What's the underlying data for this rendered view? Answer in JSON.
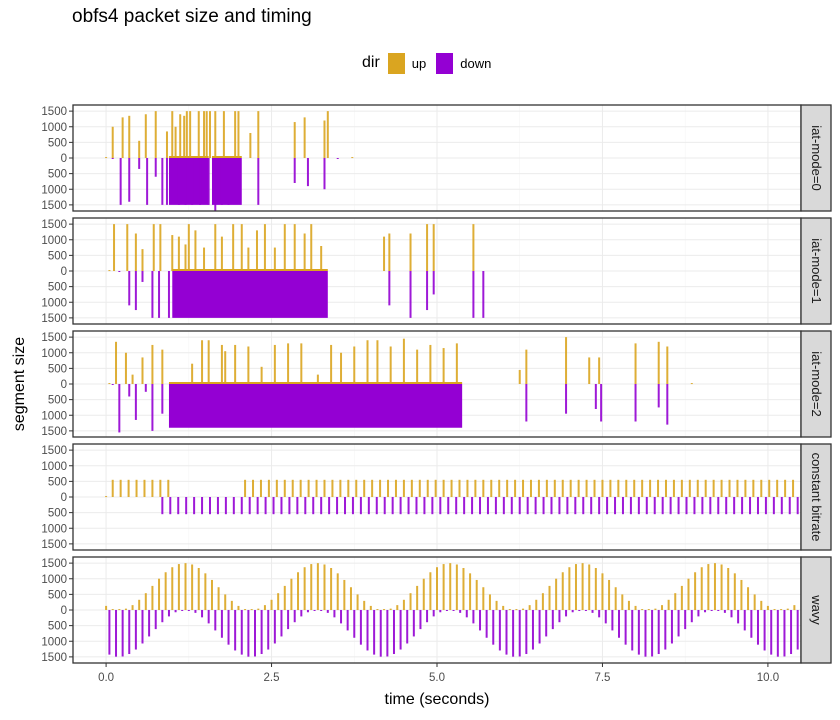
{
  "chart_data": {
    "type": "bar",
    "title": "obfs4 packet size and timing",
    "xlabel": "time (seconds)",
    "ylabel": "segment size",
    "xlim": [
      -0.5,
      10.5
    ],
    "ylim": [
      -1600,
      1600
    ],
    "x_ticks": [
      0.0,
      2.5,
      5.0,
      7.5,
      10.0
    ],
    "x_tick_labels": [
      "0.0",
      "2.5",
      "5.0",
      "7.5",
      "10.0"
    ],
    "y_ticks": [
      1500,
      1000,
      500,
      0,
      -500,
      -1000,
      -1500
    ],
    "y_tick_labels": [
      "1500",
      "1000",
      "500",
      "0",
      "500",
      "1000",
      "1500"
    ],
    "grid": true,
    "legend": {
      "title": "dir",
      "position": "top",
      "entries": [
        {
          "name": "up",
          "color": "#DAA520"
        },
        {
          "name": "down",
          "color": "#9400D3"
        }
      ]
    },
    "facets": [
      {
        "label": "iat-mode=0",
        "up": [
          [
            0.0,
            30
          ],
          [
            0.1,
            1000
          ],
          [
            0.25,
            1300
          ],
          [
            0.35,
            1350
          ],
          [
            0.5,
            550
          ],
          [
            0.6,
            1400
          ],
          [
            0.75,
            1500
          ],
          [
            0.92,
            850
          ],
          [
            1.0,
            1500
          ],
          [
            1.05,
            1000
          ],
          [
            1.12,
            1400
          ],
          [
            1.18,
            1350
          ],
          [
            1.22,
            1500
          ],
          [
            1.27,
            1500
          ],
          [
            1.4,
            1500
          ],
          [
            1.48,
            1500
          ],
          [
            1.52,
            1500
          ],
          [
            1.57,
            1500
          ],
          [
            1.65,
            1500
          ],
          [
            1.78,
            1500
          ],
          [
            1.95,
            1500
          ],
          [
            2.0,
            1500
          ],
          [
            2.18,
            800
          ],
          [
            2.3,
            1500
          ],
          [
            2.85,
            1150
          ],
          [
            3.0,
            1300
          ],
          [
            3.3,
            1200
          ],
          [
            3.35,
            1500
          ],
          [
            3.72,
            30
          ]
        ],
        "down": [
          [
            0.1,
            -30
          ],
          [
            0.22,
            -1500
          ],
          [
            0.35,
            -1400
          ],
          [
            0.5,
            -350
          ],
          [
            0.62,
            -1500
          ],
          [
            0.75,
            -600
          ],
          [
            0.85,
            -1500
          ],
          [
            0.92,
            -1500
          ],
          [
            1.1,
            -1500
          ],
          [
            1.2,
            -1500
          ],
          [
            1.3,
            -1500
          ],
          [
            1.42,
            -1500
          ],
          [
            1.55,
            -1500
          ],
          [
            1.65,
            -1700
          ],
          [
            1.75,
            -1500
          ],
          [
            1.85,
            -1500
          ],
          [
            2.3,
            -1500
          ],
          [
            2.85,
            -800
          ],
          [
            3.05,
            -900
          ],
          [
            3.3,
            -1000
          ],
          [
            3.5,
            -30
          ]
        ],
        "up_blocks": [],
        "down_blocks": [
          [
            0.95,
            1.55,
            -1500
          ],
          [
            1.6,
            2.05,
            -1500
          ]
        ]
      },
      {
        "label": "iat-mode=1",
        "up": [
          [
            0.05,
            30
          ],
          [
            0.12,
            1500
          ],
          [
            0.32,
            1500
          ],
          [
            0.45,
            1200
          ],
          [
            0.55,
            700
          ],
          [
            0.72,
            1500
          ],
          [
            0.82,
            1500
          ],
          [
            1.0,
            1150
          ],
          [
            1.1,
            1100
          ],
          [
            1.2,
            850
          ],
          [
            1.25,
            1500
          ],
          [
            1.35,
            1300
          ],
          [
            1.48,
            750
          ],
          [
            1.65,
            1500
          ],
          [
            1.75,
            1100
          ],
          [
            1.92,
            1500
          ],
          [
            2.05,
            1500
          ],
          [
            2.15,
            750
          ],
          [
            2.28,
            1300
          ],
          [
            2.4,
            1500
          ],
          [
            2.55,
            750
          ],
          [
            2.7,
            1500
          ],
          [
            2.85,
            1500
          ],
          [
            3.0,
            1200
          ],
          [
            3.1,
            1500
          ],
          [
            3.25,
            800
          ],
          [
            4.2,
            1100
          ],
          [
            4.28,
            1200
          ],
          [
            4.6,
            1200
          ],
          [
            4.85,
            1500
          ],
          [
            4.95,
            1500
          ],
          [
            5.55,
            1500
          ]
        ],
        "down": [
          [
            0.2,
            -30
          ],
          [
            0.35,
            -1100
          ],
          [
            0.45,
            -1250
          ],
          [
            0.55,
            -350
          ],
          [
            0.7,
            -1500
          ],
          [
            0.8,
            -1500
          ],
          [
            0.95,
            -1500
          ],
          [
            4.28,
            -1100
          ],
          [
            4.6,
            -1500
          ],
          [
            4.85,
            -1250
          ],
          [
            4.95,
            -750
          ],
          [
            5.55,
            -1500
          ],
          [
            5.7,
            -1500
          ]
        ],
        "up_blocks": [],
        "down_blocks": [
          [
            1.0,
            3.35,
            -1500
          ]
        ]
      },
      {
        "label": "iat-mode=2",
        "up": [
          [
            0.05,
            30
          ],
          [
            0.15,
            1350
          ],
          [
            0.3,
            1000
          ],
          [
            0.4,
            300
          ],
          [
            0.55,
            850
          ],
          [
            0.7,
            1250
          ],
          [
            0.85,
            1100
          ],
          [
            1.3,
            650
          ],
          [
            1.45,
            1400
          ],
          [
            1.55,
            1400
          ],
          [
            1.75,
            1250
          ],
          [
            1.8,
            1050
          ],
          [
            1.95,
            1250
          ],
          [
            2.15,
            1200
          ],
          [
            2.35,
            550
          ],
          [
            2.55,
            1250
          ],
          [
            2.75,
            1300
          ],
          [
            2.95,
            1300
          ],
          [
            3.2,
            300
          ],
          [
            3.4,
            1250
          ],
          [
            3.55,
            1000
          ],
          [
            3.75,
            1200
          ],
          [
            3.95,
            1400
          ],
          [
            4.1,
            1400
          ],
          [
            4.3,
            1200
          ],
          [
            4.5,
            1450
          ],
          [
            4.7,
            1100
          ],
          [
            4.9,
            1250
          ],
          [
            5.1,
            1150
          ],
          [
            5.3,
            1300
          ],
          [
            6.25,
            450
          ],
          [
            6.35,
            1100
          ],
          [
            6.95,
            1500
          ],
          [
            7.3,
            850
          ],
          [
            7.45,
            850
          ],
          [
            8.0,
            1300
          ],
          [
            8.35,
            1350
          ],
          [
            8.48,
            1200
          ],
          [
            8.85,
            30
          ]
        ],
        "down": [
          [
            0.1,
            -30
          ],
          [
            0.2,
            -1550
          ],
          [
            0.35,
            -400
          ],
          [
            0.45,
            -1150
          ],
          [
            0.6,
            -250
          ],
          [
            0.7,
            -1500
          ],
          [
            0.85,
            -950
          ],
          [
            6.35,
            -1200
          ],
          [
            6.95,
            -950
          ],
          [
            7.4,
            -800
          ],
          [
            7.48,
            -1200
          ],
          [
            8.0,
            -1200
          ],
          [
            8.35,
            -750
          ],
          [
            8.48,
            -1300
          ]
        ],
        "up_blocks": [],
        "down_blocks": [
          [
            0.95,
            5.38,
            -1400
          ]
        ]
      },
      {
        "label": "constant bitrate",
        "up_series": {
          "start": 0.1,
          "end": 0.95,
          "step": 0.12,
          "value": 550
        },
        "up_series2": {
          "start": 2.1,
          "end": 10.45,
          "step": 0.12,
          "value": 550
        },
        "down_series": {
          "start": 0.85,
          "end": 10.45,
          "step": 0.12,
          "value": -550
        },
        "up": [
          [
            0.0,
            30
          ]
        ],
        "down": [],
        "up_blocks": [],
        "down_blocks": []
      },
      {
        "label": "wavy",
        "wave": {
          "start": 0.0,
          "end": 10.45,
          "step": 0.1,
          "period": 2.0,
          "amplitude": 1500
        },
        "up": [],
        "down": [],
        "up_blocks": [],
        "down_blocks": []
      }
    ]
  }
}
